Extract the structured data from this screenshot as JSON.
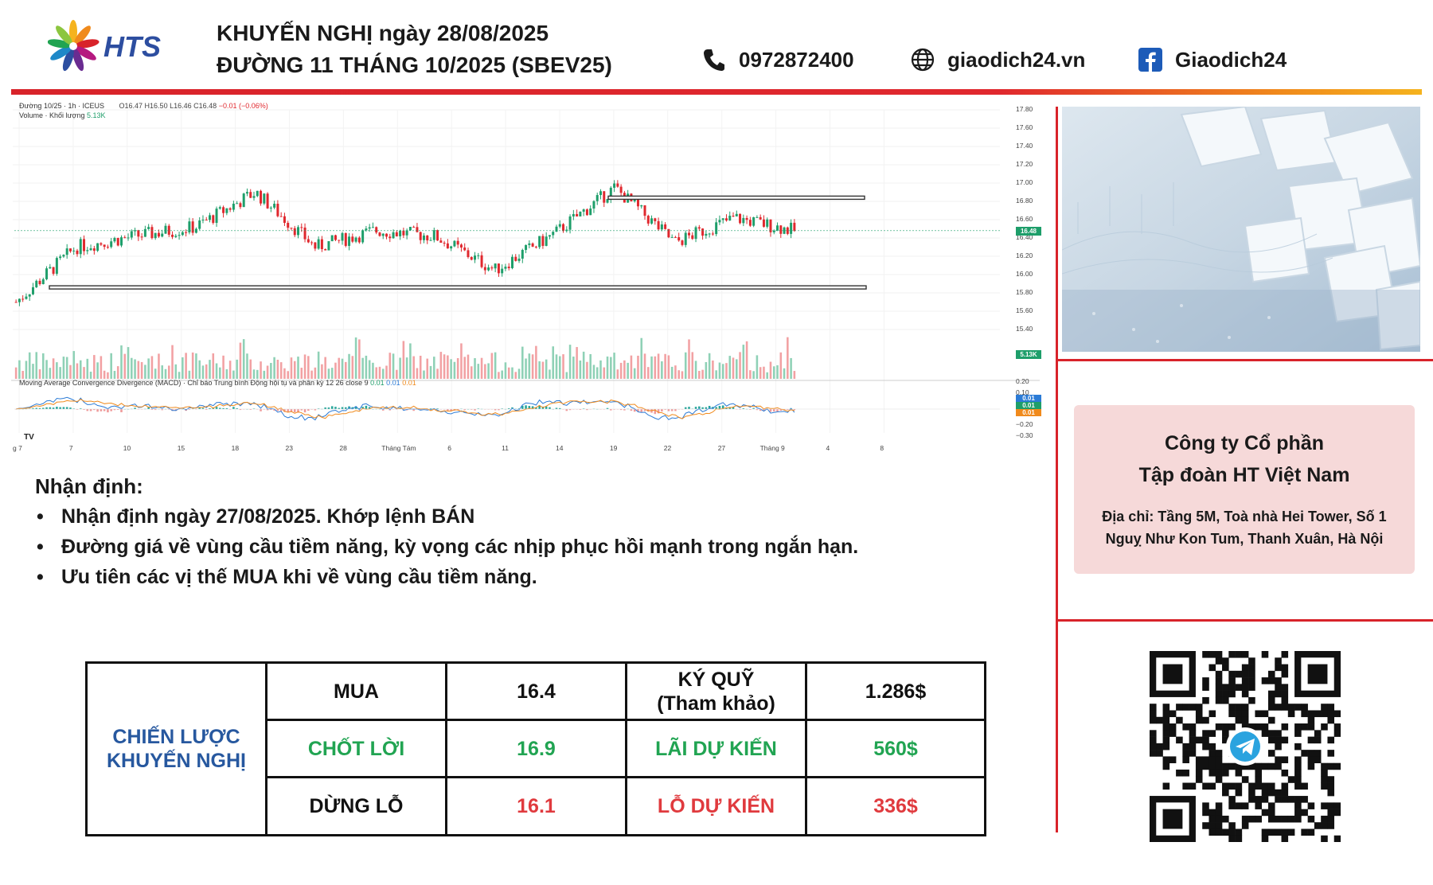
{
  "header": {
    "logo_text": "HTS",
    "title_line1": "KHUYẾN NGHỊ ngày 28/08/2025",
    "title_line2": "ĐƯỜNG 11 THÁNG 10/2025 (SBEV25)",
    "phone": "0972872400",
    "website": "giaodich24.vn",
    "facebook": "Giaodich24",
    "phone_icon": "phone-icon",
    "web_icon": "globe-icon",
    "facebook_icon": "facebook-icon",
    "accent_red": "#d8232a",
    "accent_orange": "#f5b31e"
  },
  "chart": {
    "symbol_line": "Đường 10/25 · 1h · ICEUS",
    "ohlc_o": "O16.47",
    "ohlc_h": "H16.50",
    "ohlc_l": "L16.46",
    "ohlc_c": "C16.48",
    "ohlc_change": "−0.01 (−0.06%)",
    "volume_label": "Volume · Khối lượng",
    "volume_value": "5.13K",
    "macd_label": "Moving Average Convergence Divergence (MACD) · Chỉ báo Trung bình Động hội tụ và phân kỳ",
    "macd_params": "12 26 close 9",
    "macd_v1": "0.01",
    "macd_v2": "0.01",
    "macd_v3": "0.01",
    "price_ticks": [
      "17.80",
      "17.60",
      "17.40",
      "17.20",
      "17.00",
      "16.80",
      "16.60",
      "16.40",
      "16.20",
      "16.00",
      "15.80",
      "15.60",
      "15.40"
    ],
    "last_price_tag": "16.48",
    "volume_tag": "5.13K",
    "macd_ticks": [
      "0.20",
      "0.10",
      "0.00",
      "−0.10",
      "−0.20",
      "−0.30"
    ],
    "macd_tags": [
      "0.01",
      "0.01",
      "0.01"
    ],
    "time_ticks": [
      "g 7",
      "7",
      "10",
      "15",
      "18",
      "23",
      "28",
      "Tháng Tám",
      "6",
      "11",
      "14",
      "19",
      "22",
      "27",
      "Tháng 9",
      "4",
      "8"
    ],
    "tv_logo": "TV"
  },
  "chart_data": {
    "type": "line",
    "title": "Đường 10/25 · 1h · ICEUS",
    "xlabel": "",
    "ylabel": "",
    "ylim": [
      15.4,
      17.8
    ],
    "x": [
      "g 7",
      "7",
      "10",
      "15",
      "18",
      "23",
      "28",
      "Tháng Tám",
      "6",
      "11",
      "14",
      "19",
      "22",
      "27"
    ],
    "series": [
      {
        "name": "Đường 10/25",
        "values": [
          15.7,
          16.3,
          16.42,
          16.52,
          16.9,
          16.3,
          16.48,
          16.42,
          16.05,
          16.45,
          16.95,
          16.35,
          16.62,
          16.48
        ]
      }
    ],
    "levels": {
      "resistance": 16.84,
      "support": 15.86
    },
    "last": 16.48,
    "volume_last": "5.13K"
  },
  "side": {
    "sugar_image_alt": "sugar-cubes-image",
    "company_line1": "Công ty Cổ phần",
    "company_line2": "Tập đoàn HT Việt Nam",
    "address_line1": "Địa chỉ: Tầng 5M, Toà nhà Hei Tower, Số 1",
    "address_line2": "Nguỵ Như Kon Tum, Thanh Xuân, Hà Nội",
    "qr_icon": "telegram-qr-code"
  },
  "analysis": {
    "title": "Nhận định:",
    "bullets": [
      "Nhận định ngày 27/08/2025. Khớp lệnh BÁN",
      "Đường giá về vùng cầu tiềm năng, kỳ vọng các nhịp phục hồi mạnh trong ngắn hạn.",
      "Ưu tiên các vị thế MUA khi về vùng cầu tiềm năng."
    ]
  },
  "strategy": {
    "label_line1": "CHIẾN LƯỢC",
    "label_line2": "KHUYẾN NGHỊ",
    "rows": [
      {
        "action": "MUA",
        "price": "16.4",
        "metric_line1": "KÝ QUỸ",
        "metric_line2": "(Tham khảo)",
        "amount": "1.286$"
      },
      {
        "action": "CHỐT LỜI",
        "price": "16.9",
        "metric_line1": "LÃI DỰ KIẾN",
        "metric_line2": "",
        "amount": "560$"
      },
      {
        "action": "DỪNG LỖ",
        "price": "16.1",
        "metric_line1": "LỖ DỰ KIẾN",
        "metric_line2": "",
        "amount": "336$"
      }
    ],
    "colors": {
      "label": "#27589f",
      "profit": "#21a452",
      "loss": "#e03a3e"
    }
  }
}
